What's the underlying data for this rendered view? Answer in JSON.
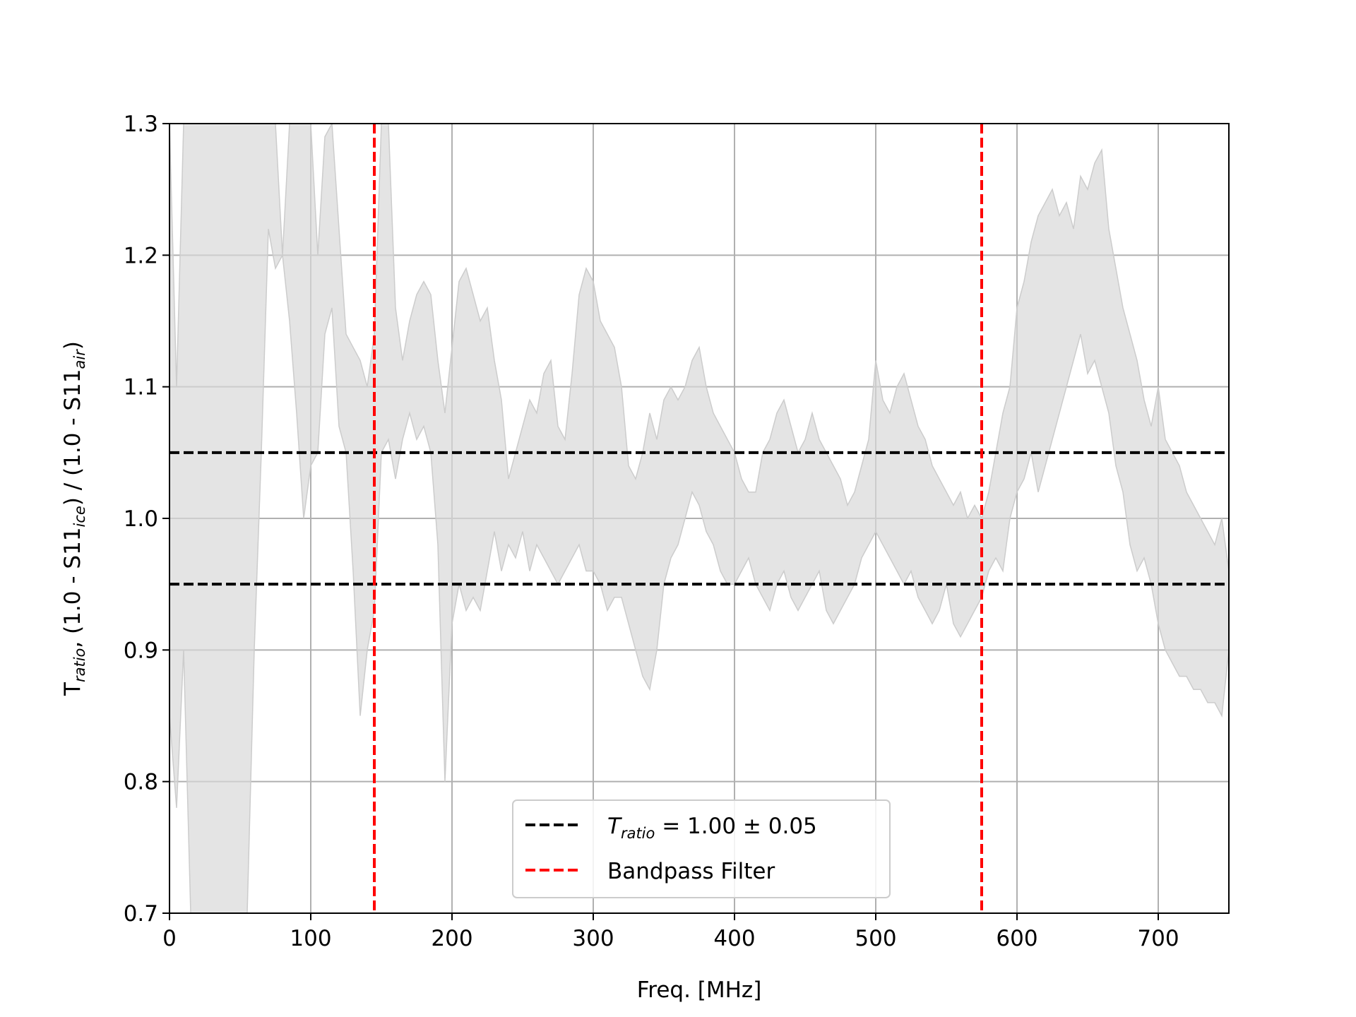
{
  "chart_data": {
    "type": "area",
    "title": "",
    "xlabel": "Freq. [MHz]",
    "ylabel": {
      "parts": [
        "T",
        "ratio",
        ", (1.0 - S11",
        "ice",
        ") / (1.0 - S11",
        "air",
        ")"
      ]
    },
    "xlim": [
      0,
      750
    ],
    "ylim": [
      0.7,
      1.3
    ],
    "x_ticks": [
      0,
      100,
      200,
      300,
      400,
      500,
      600,
      700
    ],
    "x_tick_labels": [
      "0",
      "100",
      "200",
      "300",
      "400",
      "500",
      "600",
      "700"
    ],
    "y_ticks": [
      0.7,
      0.8,
      0.9,
      1.0,
      1.1,
      1.2,
      1.3
    ],
    "y_tick_labels": [
      "0.7",
      "0.8",
      "0.9",
      "1.0",
      "1.1",
      "1.2",
      "1.3"
    ],
    "grid": true,
    "band": {
      "name": "",
      "color": "#d9d9d9",
      "x": [
        0,
        5,
        10,
        15,
        20,
        25,
        30,
        35,
        40,
        45,
        50,
        55,
        60,
        65,
        70,
        75,
        80,
        85,
        90,
        95,
        100,
        105,
        110,
        115,
        120,
        125,
        130,
        135,
        140,
        145,
        150,
        155,
        160,
        165,
        170,
        175,
        180,
        185,
        190,
        195,
        200,
        205,
        210,
        215,
        220,
        225,
        230,
        235,
        240,
        245,
        250,
        255,
        260,
        265,
        270,
        275,
        280,
        285,
        290,
        295,
        300,
        305,
        310,
        315,
        320,
        325,
        330,
        335,
        340,
        345,
        350,
        355,
        360,
        365,
        370,
        375,
        380,
        385,
        390,
        395,
        400,
        405,
        410,
        415,
        420,
        425,
        430,
        435,
        440,
        445,
        450,
        455,
        460,
        465,
        470,
        475,
        480,
        485,
        490,
        495,
        500,
        505,
        510,
        515,
        520,
        525,
        530,
        535,
        540,
        545,
        550,
        555,
        560,
        565,
        570,
        575,
        580,
        585,
        590,
        595,
        600,
        605,
        610,
        615,
        620,
        625,
        630,
        635,
        640,
        645,
        650,
        655,
        660,
        665,
        670,
        675,
        680,
        685,
        690,
        695,
        700,
        705,
        710,
        715,
        720,
        725,
        730,
        735,
        740,
        745,
        750
      ],
      "upper": [
        1.3,
        1.1,
        1.3,
        1.3,
        1.3,
        1.3,
        1.3,
        1.3,
        1.3,
        1.3,
        1.3,
        1.3,
        1.3,
        1.3,
        1.3,
        1.3,
        1.2,
        1.3,
        1.3,
        1.3,
        1.3,
        1.2,
        1.29,
        1.3,
        1.22,
        1.14,
        1.13,
        1.12,
        1.1,
        1.14,
        1.3,
        1.3,
        1.16,
        1.12,
        1.15,
        1.17,
        1.18,
        1.17,
        1.12,
        1.08,
        1.13,
        1.18,
        1.19,
        1.17,
        1.15,
        1.16,
        1.12,
        1.09,
        1.03,
        1.05,
        1.07,
        1.09,
        1.08,
        1.11,
        1.12,
        1.07,
        1.06,
        1.11,
        1.17,
        1.19,
        1.18,
        1.15,
        1.14,
        1.13,
        1.1,
        1.04,
        1.03,
        1.05,
        1.08,
        1.06,
        1.09,
        1.1,
        1.09,
        1.1,
        1.12,
        1.13,
        1.1,
        1.08,
        1.07,
        1.06,
        1.05,
        1.03,
        1.02,
        1.02,
        1.05,
        1.06,
        1.08,
        1.09,
        1.07,
        1.05,
        1.06,
        1.08,
        1.06,
        1.05,
        1.04,
        1.03,
        1.01,
        1.02,
        1.04,
        1.06,
        1.12,
        1.09,
        1.08,
        1.1,
        1.11,
        1.09,
        1.07,
        1.06,
        1.04,
        1.03,
        1.02,
        1.01,
        1.02,
        1.0,
        1.01,
        1.0,
        1.02,
        1.05,
        1.08,
        1.1,
        1.16,
        1.18,
        1.21,
        1.23,
        1.24,
        1.25,
        1.23,
        1.24,
        1.22,
        1.26,
        1.25,
        1.27,
        1.28,
        1.22,
        1.19,
        1.16,
        1.14,
        1.12,
        1.09,
        1.07,
        1.1,
        1.06,
        1.05,
        1.04,
        1.02,
        1.01,
        1.0,
        0.99,
        0.98,
        1.0,
        0.96
      ],
      "lower": [
        0.85,
        0.78,
        0.9,
        0.7,
        0.7,
        0.7,
        0.7,
        0.7,
        0.7,
        0.7,
        0.7,
        0.7,
        0.9,
        1.05,
        1.22,
        1.19,
        1.2,
        1.15,
        1.08,
        1.0,
        1.04,
        1.05,
        1.14,
        1.16,
        1.07,
        1.05,
        0.96,
        0.85,
        0.9,
        0.93,
        1.05,
        1.06,
        1.03,
        1.06,
        1.08,
        1.06,
        1.07,
        1.05,
        0.98,
        0.8,
        0.92,
        0.95,
        0.93,
        0.94,
        0.93,
        0.96,
        0.99,
        0.96,
        0.98,
        0.97,
        0.99,
        0.96,
        0.98,
        0.97,
        0.96,
        0.95,
        0.96,
        0.97,
        0.98,
        0.96,
        0.96,
        0.95,
        0.93,
        0.94,
        0.94,
        0.92,
        0.9,
        0.88,
        0.87,
        0.9,
        0.95,
        0.97,
        0.98,
        1.0,
        1.02,
        1.01,
        0.99,
        0.98,
        0.96,
        0.95,
        0.95,
        0.96,
        0.97,
        0.95,
        0.94,
        0.93,
        0.95,
        0.96,
        0.94,
        0.93,
        0.94,
        0.95,
        0.96,
        0.93,
        0.92,
        0.93,
        0.94,
        0.95,
        0.97,
        0.98,
        0.99,
        0.98,
        0.97,
        0.96,
        0.95,
        0.96,
        0.94,
        0.93,
        0.92,
        0.93,
        0.95,
        0.92,
        0.91,
        0.92,
        0.93,
        0.94,
        0.96,
        0.97,
        0.96,
        1.0,
        1.02,
        1.03,
        1.05,
        1.02,
        1.04,
        1.06,
        1.08,
        1.1,
        1.12,
        1.14,
        1.11,
        1.12,
        1.1,
        1.08,
        1.04,
        1.02,
        0.98,
        0.96,
        0.97,
        0.95,
        0.92,
        0.9,
        0.89,
        0.88,
        0.88,
        0.87,
        0.87,
        0.86,
        0.86,
        0.85,
        0.9
      ]
    },
    "hlines": [
      {
        "y": 1.05,
        "color": "#000000",
        "style": "dashed"
      },
      {
        "y": 0.95,
        "color": "#000000",
        "style": "dashed"
      }
    ],
    "vlines": [
      {
        "x": 145,
        "color": "#ff0000",
        "style": "dashed"
      },
      {
        "x": 575,
        "color": "#ff0000",
        "style": "dashed"
      }
    ],
    "legend": {
      "placement": "lower-center",
      "entries": [
        {
          "label_parts": [
            "T",
            "ratio",
            " = 1.00 ± 0.05"
          ],
          "color": "#000000",
          "style": "dashed"
        },
        {
          "label_parts": [
            "Bandpass Filter"
          ],
          "color": "#ff0000",
          "style": "dashed"
        }
      ]
    }
  }
}
